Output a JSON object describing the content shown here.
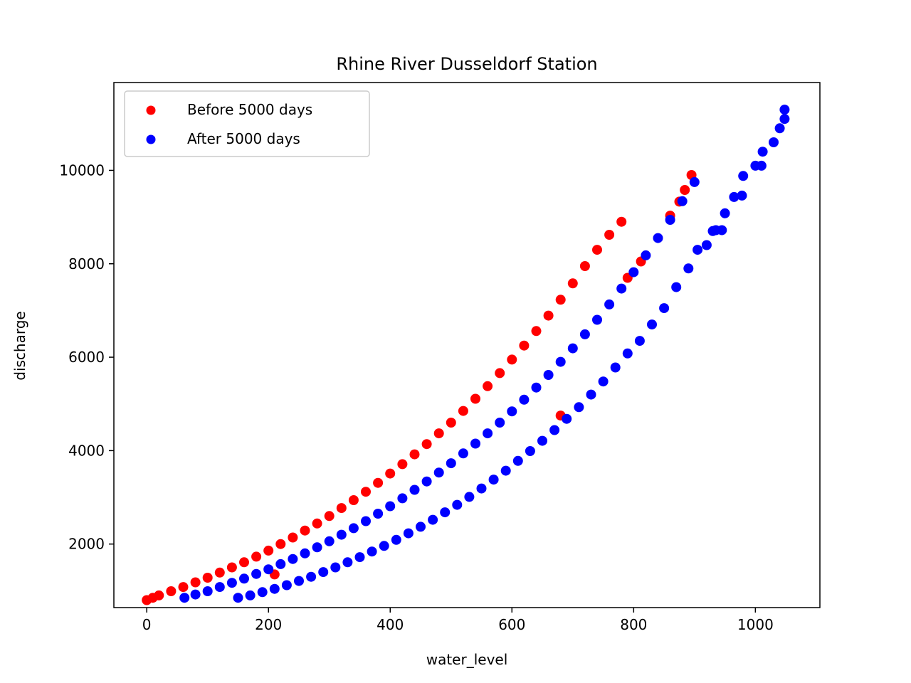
{
  "chart_data": {
    "type": "scatter",
    "title": "Rhine River Dusseldorf Station",
    "xlabel": "water_level",
    "ylabel": "discharge",
    "xlim": [
      -54,
      1106
    ],
    "ylim": [
      640,
      11880
    ],
    "xticks": [
      0,
      200,
      400,
      600,
      800,
      1000
    ],
    "yticks": [
      2000,
      4000,
      6000,
      8000,
      10000
    ],
    "grid": false,
    "legend": "upper-left",
    "series": [
      {
        "name": "Before 5000 days",
        "color": "#ff0000",
        "points": [
          [
            0,
            800
          ],
          [
            10,
            850
          ],
          [
            20,
            900
          ],
          [
            40,
            990
          ],
          [
            60,
            1080
          ],
          [
            80,
            1180
          ],
          [
            100,
            1280
          ],
          [
            120,
            1390
          ],
          [
            140,
            1500
          ],
          [
            160,
            1610
          ],
          [
            180,
            1730
          ],
          [
            200,
            1860
          ],
          [
            210,
            1350
          ],
          [
            220,
            2000
          ],
          [
            240,
            2140
          ],
          [
            260,
            2290
          ],
          [
            280,
            2440
          ],
          [
            300,
            2600
          ],
          [
            320,
            2770
          ],
          [
            340,
            2940
          ],
          [
            360,
            3120
          ],
          [
            380,
            3310
          ],
          [
            400,
            3510
          ],
          [
            420,
            3710
          ],
          [
            440,
            3920
          ],
          [
            460,
            4140
          ],
          [
            480,
            4370
          ],
          [
            500,
            4600
          ],
          [
            520,
            4850
          ],
          [
            540,
            5110
          ],
          [
            560,
            5380
          ],
          [
            580,
            5660
          ],
          [
            600,
            5950
          ],
          [
            620,
            6250
          ],
          [
            640,
            6560
          ],
          [
            660,
            6890
          ],
          [
            680,
            7230
          ],
          [
            700,
            7580
          ],
          [
            680,
            4750
          ],
          [
            720,
            7950
          ],
          [
            740,
            8300
          ],
          [
            760,
            8620
          ],
          [
            780,
            8900
          ],
          [
            790,
            7700
          ],
          [
            812,
            8050
          ],
          [
            860,
            9030
          ],
          [
            875,
            9330
          ],
          [
            884,
            9580
          ],
          [
            895,
            9900
          ]
        ]
      },
      {
        "name": "After 5000 days",
        "color": "#0000ff",
        "points": [
          [
            62,
            850
          ],
          [
            80,
            920
          ],
          [
            100,
            990
          ],
          [
            120,
            1080
          ],
          [
            140,
            1170
          ],
          [
            160,
            1260
          ],
          [
            180,
            1360
          ],
          [
            200,
            1460
          ],
          [
            220,
            1570
          ],
          [
            240,
            1680
          ],
          [
            260,
            1800
          ],
          [
            280,
            1930
          ],
          [
            300,
            2060
          ],
          [
            320,
            2200
          ],
          [
            340,
            2340
          ],
          [
            360,
            2490
          ],
          [
            380,
            2650
          ],
          [
            400,
            2810
          ],
          [
            420,
            2980
          ],
          [
            440,
            3160
          ],
          [
            460,
            3340
          ],
          [
            480,
            3530
          ],
          [
            500,
            3730
          ],
          [
            520,
            3940
          ],
          [
            540,
            4150
          ],
          [
            560,
            4370
          ],
          [
            580,
            4600
          ],
          [
            600,
            4840
          ],
          [
            620,
            5090
          ],
          [
            640,
            5350
          ],
          [
            660,
            5620
          ],
          [
            680,
            5900
          ],
          [
            700,
            6190
          ],
          [
            720,
            6490
          ],
          [
            740,
            6800
          ],
          [
            760,
            7130
          ],
          [
            780,
            7470
          ],
          [
            800,
            7820
          ],
          [
            820,
            8180
          ],
          [
            840,
            8550
          ],
          [
            860,
            8940
          ],
          [
            880,
            9340
          ],
          [
            900,
            9750
          ],
          [
            920,
            8400
          ],
          [
            935,
            8720
          ],
          [
            950,
            9080
          ],
          [
            965,
            9430
          ],
          [
            978,
            9460
          ],
          [
            980,
            9880
          ],
          [
            1000,
            10100
          ],
          [
            1010,
            10100
          ],
          [
            1012,
            10400
          ],
          [
            1030,
            10600
          ],
          [
            1040,
            10900
          ],
          [
            1048,
            11100
          ],
          [
            1048,
            11300
          ],
          [
            930,
            8700
          ],
          [
            945,
            8720
          ],
          [
            905,
            8300
          ],
          [
            890,
            7900
          ],
          [
            870,
            7500
          ],
          [
            850,
            7050
          ],
          [
            830,
            6700
          ],
          [
            810,
            6350
          ],
          [
            790,
            6080
          ],
          [
            770,
            5780
          ],
          [
            750,
            5480
          ],
          [
            730,
            5200
          ],
          [
            710,
            4930
          ],
          [
            690,
            4680
          ],
          [
            670,
            4440
          ],
          [
            650,
            4210
          ],
          [
            630,
            3990
          ],
          [
            610,
            3780
          ],
          [
            590,
            3570
          ],
          [
            570,
            3380
          ],
          [
            550,
            3190
          ],
          [
            530,
            3010
          ],
          [
            510,
            2840
          ],
          [
            490,
            2680
          ],
          [
            470,
            2520
          ],
          [
            450,
            2370
          ],
          [
            430,
            2230
          ],
          [
            410,
            2090
          ],
          [
            390,
            1960
          ],
          [
            370,
            1840
          ],
          [
            350,
            1720
          ],
          [
            330,
            1610
          ],
          [
            310,
            1500
          ],
          [
            290,
            1400
          ],
          [
            270,
            1300
          ],
          [
            250,
            1210
          ],
          [
            230,
            1120
          ],
          [
            210,
            1040
          ],
          [
            190,
            970
          ],
          [
            170,
            900
          ],
          [
            150,
            850
          ]
        ]
      }
    ]
  }
}
